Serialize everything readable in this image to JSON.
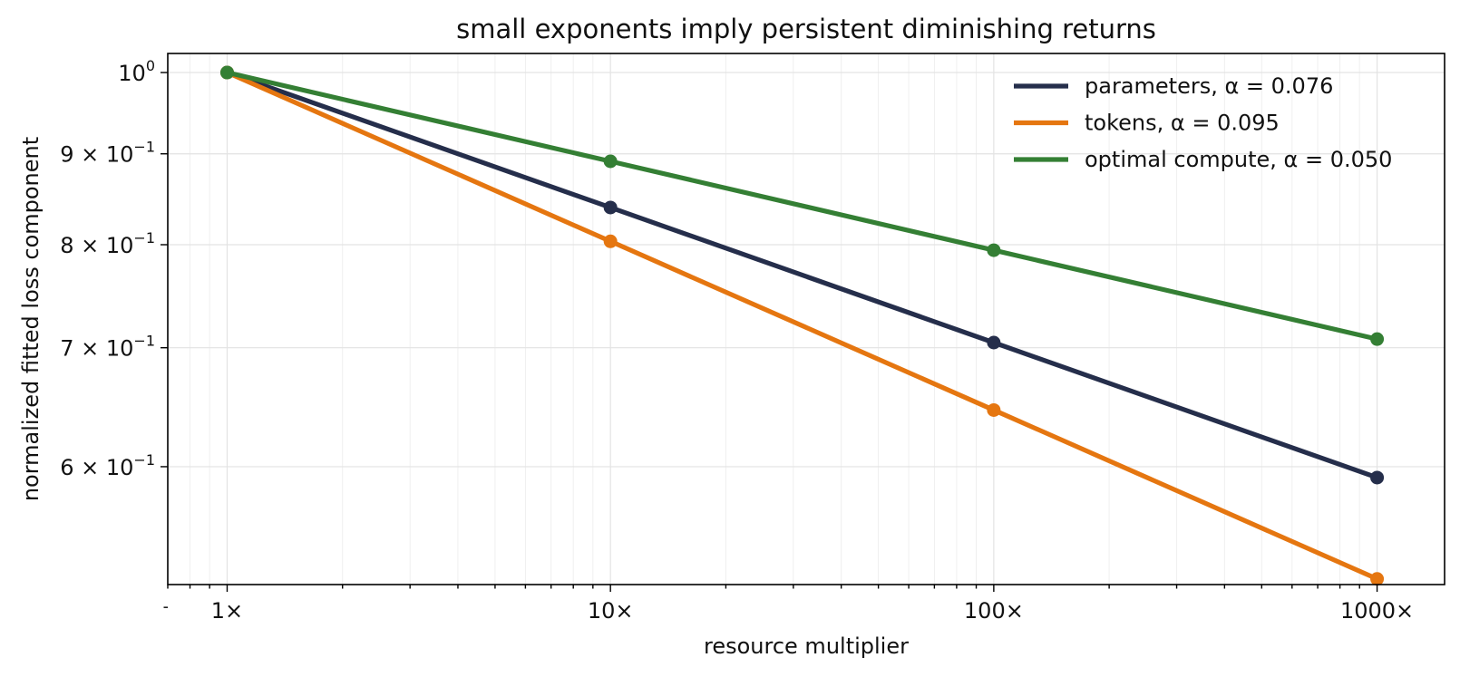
{
  "chart_data": {
    "type": "line",
    "title": "small exponents imply persistent diminishing returns",
    "xlabel": "resource multiplier",
    "ylabel": "normalized fitted loss component",
    "x_scale": "log",
    "y_scale": "log",
    "x": [
      1,
      10,
      100,
      1000
    ],
    "x_tick_labels": [
      "1×",
      "10×",
      "100×",
      "1000×"
    ],
    "xlim": [
      0.7,
      1500
    ],
    "ylim": [
      0.515,
      1.025
    ],
    "y_ticks": [
      {
        "value": 1.0,
        "base": "10",
        "exp": "0"
      },
      {
        "value": 0.9,
        "base": "9 × 10",
        "exp": "−1"
      },
      {
        "value": 0.8,
        "base": "8 × 10",
        "exp": "−1"
      },
      {
        "value": 0.7,
        "base": "7 × 10",
        "exp": "−1"
      },
      {
        "value": 0.6,
        "base": "6 × 10",
        "exp": "−1"
      }
    ],
    "grid": true,
    "legend_position": "top-right",
    "series": [
      {
        "name": "parameters, α = 0.076",
        "color": "#252e4b",
        "values": [
          1.0,
          0.8395,
          0.7047,
          0.5916
        ]
      },
      {
        "name": "tokens, α = 0.095",
        "color": "#e57610",
        "values": [
          1.0,
          0.8035,
          0.6457,
          0.5188
        ]
      },
      {
        "name": "optimal compute, α = 0.050",
        "color": "#347f34",
        "values": [
          1.0,
          0.8913,
          0.7943,
          0.7079
        ]
      }
    ]
  }
}
